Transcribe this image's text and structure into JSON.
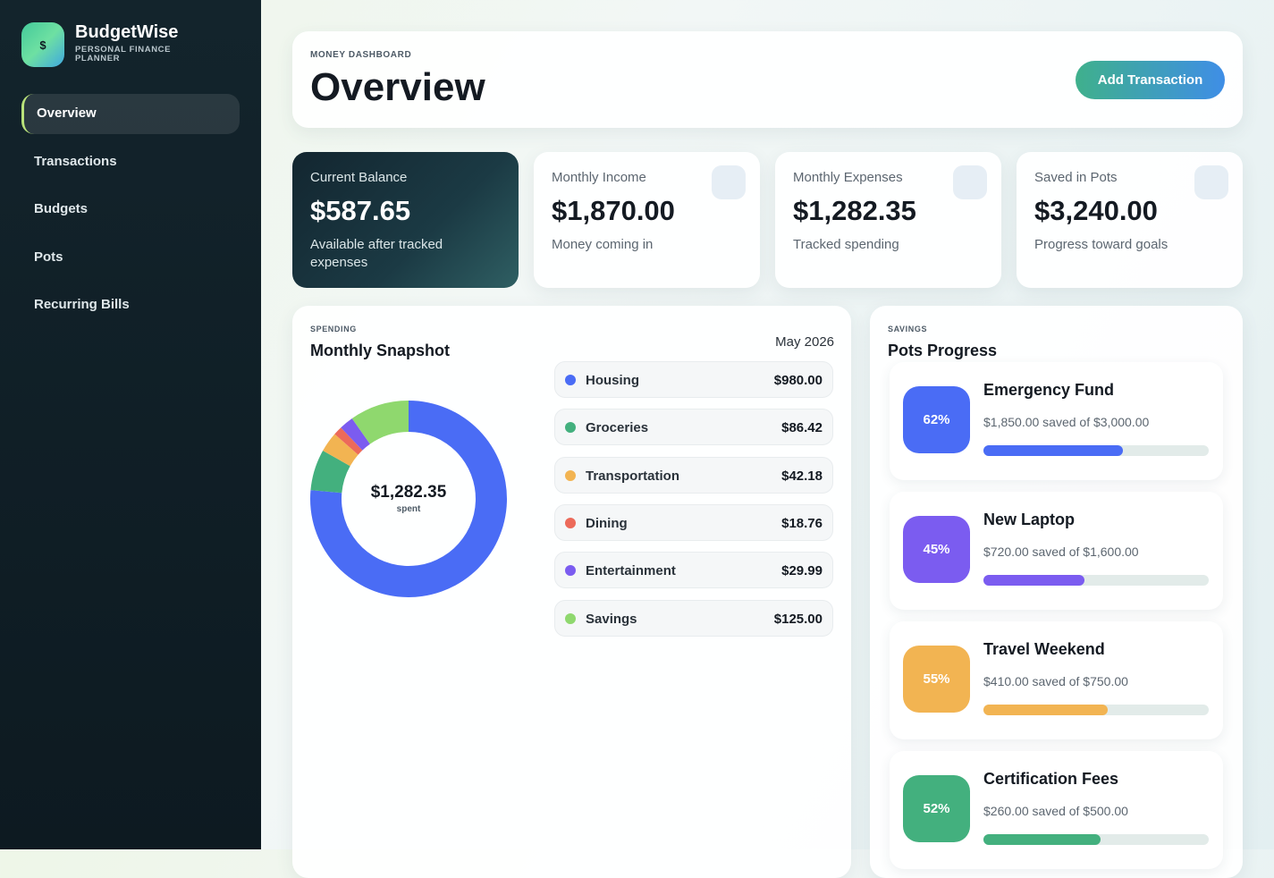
{
  "brand": {
    "logo": "$",
    "name": "BudgetWise",
    "tagline": "PERSONAL FINANCE PLANNER"
  },
  "nav": {
    "items": [
      "Overview",
      "Transactions",
      "Budgets",
      "Pots",
      "Recurring Bills"
    ],
    "active": 0
  },
  "header": {
    "eyebrow": "MONEY DASHBOARD",
    "title": "Overview",
    "button": "Add Transaction"
  },
  "stats": [
    {
      "label": "Current Balance",
      "value": "$587.65",
      "note": "Available after tracked expenses",
      "dark": true
    },
    {
      "label": "Monthly Income",
      "value": "$1,870.00",
      "note": "Money coming in",
      "dark": false
    },
    {
      "label": "Monthly Expenses",
      "value": "$1,282.35",
      "note": "Tracked spending",
      "dark": false
    },
    {
      "label": "Saved in Pots",
      "value": "$3,240.00",
      "note": "Progress toward goals",
      "dark": false
    }
  ],
  "spending": {
    "eyebrow": "SPENDING",
    "title": "Monthly Snapshot",
    "period": "May 2026",
    "total": "$1,282.35",
    "total_note": "spent",
    "categories": [
      {
        "name": "Housing",
        "color": "#4a6cf5",
        "amount": 980.0,
        "amount_label": "$980.00"
      },
      {
        "name": "Groceries",
        "color": "#43b07e",
        "amount": 86.42,
        "amount_label": "$86.42"
      },
      {
        "name": "Transportation",
        "color": "#f2b452",
        "amount": 42.18,
        "amount_label": "$42.18"
      },
      {
        "name": "Dining",
        "color": "#ec6a5a",
        "amount": 18.76,
        "amount_label": "$18.76"
      },
      {
        "name": "Entertainment",
        "color": "#7b5cf0",
        "amount": 29.99,
        "amount_label": "$29.99"
      },
      {
        "name": "Savings",
        "color": "#8fd86e",
        "amount": 125.0,
        "amount_label": "$125.00"
      }
    ]
  },
  "pots": {
    "eyebrow": "SAVINGS",
    "title": "Pots Progress",
    "items": [
      {
        "name": "Emergency Fund",
        "percent": {
          "value": 62,
          "label": "62%"
        },
        "detail": "$1,850.00 saved of $3,000.00",
        "color": "#4a6cf5"
      },
      {
        "name": "New Laptop",
        "percent": {
          "value": 45,
          "label": "45%"
        },
        "detail": "$720.00 saved of $1,600.00",
        "color": "#7b5cf0"
      },
      {
        "name": "Travel Weekend",
        "percent": {
          "value": 55,
          "label": "55%"
        },
        "detail": "$410.00 saved of $750.00",
        "color": "#f2b452"
      },
      {
        "name": "Certification Fees",
        "percent": {
          "value": 52,
          "label": "52%"
        },
        "detail": "$260.00 saved of $500.00",
        "color": "#43b07e"
      }
    ]
  }
}
